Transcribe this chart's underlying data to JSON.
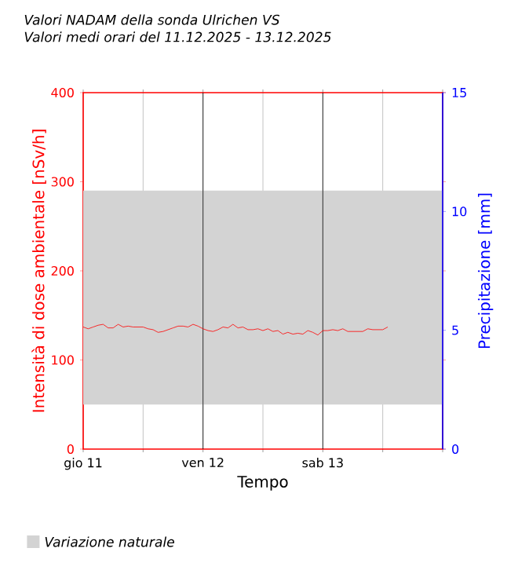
{
  "chart_data": {
    "type": "line",
    "title": "Valori NADAM della sonda Ulrichen VS",
    "subtitle": "Valori medi orari del 11.12.2025 - 13.12.2025",
    "xlabel": "Tempo",
    "ylabel": "Intensità di dose ambientale [nSv/h]",
    "y2label": "Precipitazione [mm]",
    "x": [
      "2025-12-11T00:00",
      "2025-12-11T01:00",
      "2025-12-11T02:00",
      "2025-12-11T03:00",
      "2025-12-11T04:00",
      "2025-12-11T05:00",
      "2025-12-11T06:00",
      "2025-12-11T07:00",
      "2025-12-11T08:00",
      "2025-12-11T09:00",
      "2025-12-11T10:00",
      "2025-12-11T11:00",
      "2025-12-11T12:00",
      "2025-12-11T13:00",
      "2025-12-11T14:00",
      "2025-12-11T15:00",
      "2025-12-11T16:00",
      "2025-12-11T17:00",
      "2025-12-11T18:00",
      "2025-12-11T19:00",
      "2025-12-11T20:00",
      "2025-12-11T21:00",
      "2025-12-11T22:00",
      "2025-12-11T23:00",
      "2025-12-12T00:00",
      "2025-12-12T01:00",
      "2025-12-12T02:00",
      "2025-12-12T03:00",
      "2025-12-12T04:00",
      "2025-12-12T05:00",
      "2025-12-12T06:00",
      "2025-12-12T07:00",
      "2025-12-12T08:00",
      "2025-12-12T09:00",
      "2025-12-12T10:00",
      "2025-12-12T11:00",
      "2025-12-12T12:00",
      "2025-12-12T13:00",
      "2025-12-12T14:00",
      "2025-12-12T15:00",
      "2025-12-12T16:00",
      "2025-12-12T17:00",
      "2025-12-12T18:00",
      "2025-12-12T19:00",
      "2025-12-12T20:00",
      "2025-12-12T21:00",
      "2025-12-12T22:00",
      "2025-12-12T23:00",
      "2025-12-13T00:00",
      "2025-12-13T01:00",
      "2025-12-13T02:00",
      "2025-12-13T03:00",
      "2025-12-13T04:00",
      "2025-12-13T05:00",
      "2025-12-13T06:00",
      "2025-12-13T07:00",
      "2025-12-13T08:00",
      "2025-12-13T09:00",
      "2025-12-13T10:00",
      "2025-12-13T11:00",
      "2025-12-13T12:00",
      "2025-12-13T13:00"
    ],
    "series": [
      {
        "color": "#ff0000",
        "values": [
          137,
          135,
          137,
          139,
          140,
          136,
          136,
          140,
          137,
          138,
          137,
          137,
          137,
          135,
          134,
          131,
          132,
          134,
          136,
          138,
          138,
          137,
          140,
          138,
          135,
          133,
          132,
          134,
          137,
          136,
          140,
          136,
          137,
          134,
          134,
          135,
          133,
          135,
          132,
          133,
          129,
          131,
          129,
          130,
          129,
          133,
          131,
          128,
          133,
          133,
          134,
          133,
          135,
          132,
          132,
          132,
          132,
          135,
          134,
          134,
          134,
          137
        ]
      }
    ],
    "xlim": [
      "2025-12-11T00:00",
      "2025-12-14T00:00"
    ],
    "xticks": [
      {
        "value": "2025-12-11T00:00",
        "label": "gio 11"
      },
      {
        "value": "2025-12-11T12:00",
        "label": null
      },
      {
        "value": "2025-12-12T00:00",
        "label": "ven 12"
      },
      {
        "value": "2025-12-12T12:00",
        "label": null
      },
      {
        "value": "2025-12-13T00:00",
        "label": "sab 13"
      },
      {
        "value": "2025-12-13T12:00",
        "label": null
      },
      {
        "value": "2025-12-14T00:00",
        "label": null
      }
    ],
    "ylim": [
      0,
      400
    ],
    "yticks": [
      0,
      100,
      200,
      300,
      400
    ],
    "y2lim": [
      0,
      15
    ],
    "y2ticks": [
      0,
      5,
      10,
      15
    ],
    "bands": [
      {
        "axis": "y",
        "from": 50,
        "to": 290,
        "label": "Variazione naturale",
        "color": "#d3d3d3"
      }
    ],
    "grid": "x",
    "legend": "bottom left",
    "marker": "none",
    "line_style": "solid"
  }
}
